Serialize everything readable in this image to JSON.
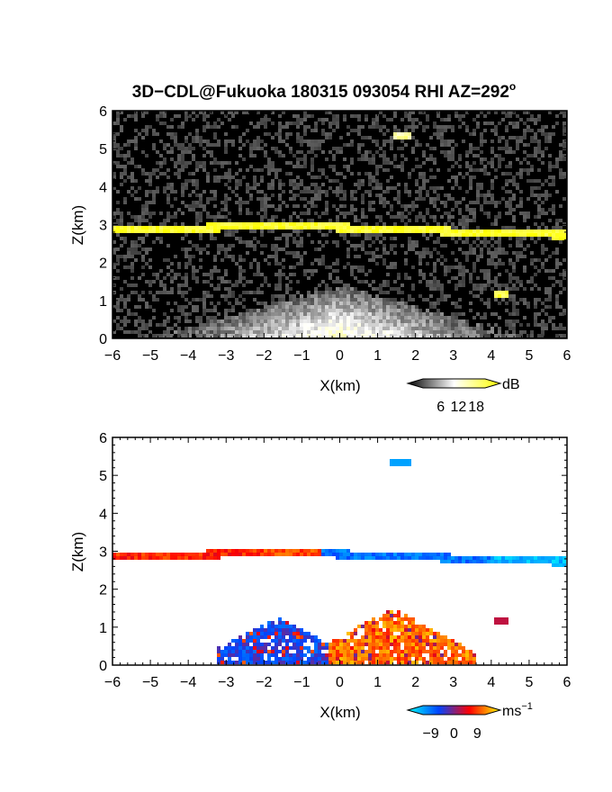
{
  "figure": {
    "title": "3D−CDL@Fukuoka 180315 093054 RHI AZ=292",
    "title_superscript": "o"
  },
  "chart_data": [
    {
      "type": "heatmap",
      "panel": "reflectivity",
      "xlabel": "X(km)",
      "ylabel": "Z(km)",
      "xlim": [
        -6,
        6
      ],
      "ylim": [
        0,
        6
      ],
      "x_ticks": [
        "−6",
        "−5",
        "−4",
        "−3",
        "−2",
        "−1",
        "0",
        "1",
        "2",
        "3",
        "4",
        "5",
        "6"
      ],
      "y_ticks": [
        "0",
        "1",
        "2",
        "3",
        "4",
        "5",
        "6"
      ],
      "colorbar": {
        "unit": "dB",
        "ticks": [
          "6",
          "12",
          "18"
        ],
        "range": [
          0,
          21
        ],
        "colors": [
          "#000000",
          "#ffffff",
          "#ffff00"
        ]
      },
      "features": [
        {
          "name": "cloud-layer",
          "x": [
            -6,
            6
          ],
          "z_center": [
            2.88,
            2.9,
            2.95,
            2.92,
            2.85,
            2.78,
            2.72
          ],
          "value_db": 19
        },
        {
          "name": "boundary-layer-echo",
          "x": [
            -3.5,
            3.5
          ],
          "z_top": 1.4,
          "value_db": 8
        },
        {
          "name": "small-echo",
          "x": [
            1.4,
            1.9
          ],
          "z": 5.35,
          "value_db": 12
        },
        {
          "name": "small-echo",
          "x": [
            4.1,
            4.5
          ],
          "z": 1.15,
          "value_db": 18
        }
      ],
      "grid": false
    },
    {
      "type": "heatmap",
      "panel": "doppler-velocity",
      "xlabel": "X(km)",
      "ylabel": "Z(km)",
      "xlim": [
        -6,
        6
      ],
      "ylim": [
        0,
        6
      ],
      "x_ticks": [
        "−6",
        "−5",
        "−4",
        "−3",
        "−2",
        "−1",
        "0",
        "1",
        "2",
        "3",
        "4",
        "5",
        "6"
      ],
      "y_ticks": [
        "0",
        "1",
        "2",
        "3",
        "4",
        "5",
        "6"
      ],
      "colorbar": {
        "unit": "ms",
        "unit_superscript": "−1",
        "ticks": [
          "−9",
          "0",
          "9"
        ],
        "range": [
          -12,
          12
        ],
        "colors": [
          "#00ffff",
          "#0044ff",
          "#ff0000",
          "#ffff00"
        ]
      },
      "features": [
        {
          "name": "cloud-layer-left",
          "x": [
            -6,
            -0.5
          ],
          "velocity": 5
        },
        {
          "name": "cloud-layer-right",
          "x": [
            -0.5,
            6
          ],
          "velocity": -7
        },
        {
          "name": "low-echo-left",
          "x": [
            -3.2,
            -0.3
          ],
          "z_top": 1.1,
          "velocity": -6
        },
        {
          "name": "low-echo-right",
          "x": [
            0,
            3.6
          ],
          "z_top": 1.4,
          "velocity": 7
        },
        {
          "name": "small-echo",
          "x": [
            1.3,
            1.9
          ],
          "z": 5.3,
          "velocity": -8
        },
        {
          "name": "small-echo",
          "x": [
            4.1,
            4.5
          ],
          "z": 1.15,
          "velocity": 2
        }
      ],
      "grid": false
    }
  ]
}
